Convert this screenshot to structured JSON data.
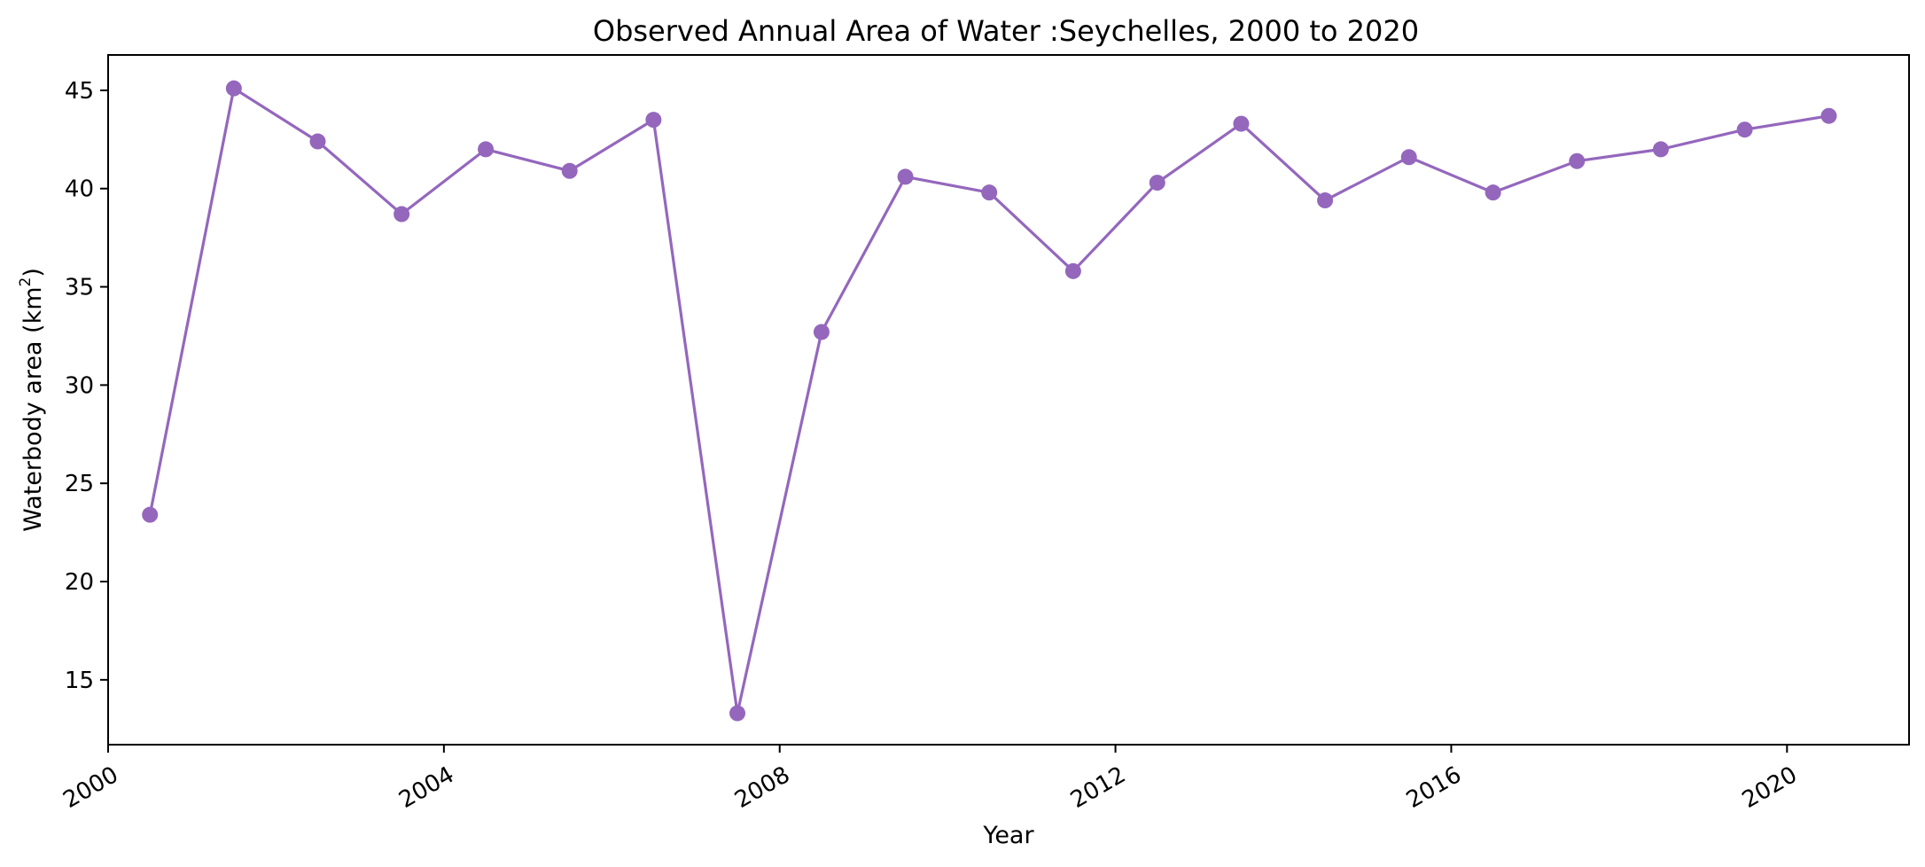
{
  "chart_data": {
    "type": "line",
    "title": "Observed Annual Area of Water :Seychelles, 2000 to 2020",
    "xlabel": "Year",
    "ylabel": "Waterbody area (km²)",
    "ylabel_main": "Waterbody area (km",
    "ylabel_sup": "2",
    "ylabel_close": ")",
    "xlim": [
      "2000-01-01",
      "2021-06-15"
    ],
    "ylim": [
      11.7,
      46.8
    ],
    "x_ticks": [
      "2000",
      "2004",
      "2008",
      "2012",
      "2016",
      "2020"
    ],
    "y_ticks": [
      "15",
      "20",
      "25",
      "30",
      "35",
      "40",
      "45"
    ],
    "grid": false,
    "legend": "none",
    "line_color": "#9467bd",
    "series": [
      {
        "x": [
          "2000-07-01",
          "2001-07-01",
          "2002-07-01",
          "2003-07-01",
          "2004-07-01",
          "2005-07-01",
          "2006-07-01",
          "2007-07-01",
          "2008-07-01",
          "2009-07-01",
          "2010-07-01",
          "2011-07-01",
          "2012-07-01",
          "2013-07-01",
          "2014-07-01",
          "2015-07-01",
          "2016-07-01",
          "2017-07-01",
          "2018-07-01",
          "2019-07-01",
          "2020-07-01"
        ],
        "values": [
          23.4,
          45.1,
          42.4,
          38.7,
          42.0,
          40.9,
          43.5,
          13.3,
          32.7,
          40.6,
          39.8,
          35.8,
          40.3,
          43.3,
          39.4,
          41.6,
          39.8,
          41.4,
          42.0,
          43.0,
          43.7
        ]
      }
    ]
  }
}
